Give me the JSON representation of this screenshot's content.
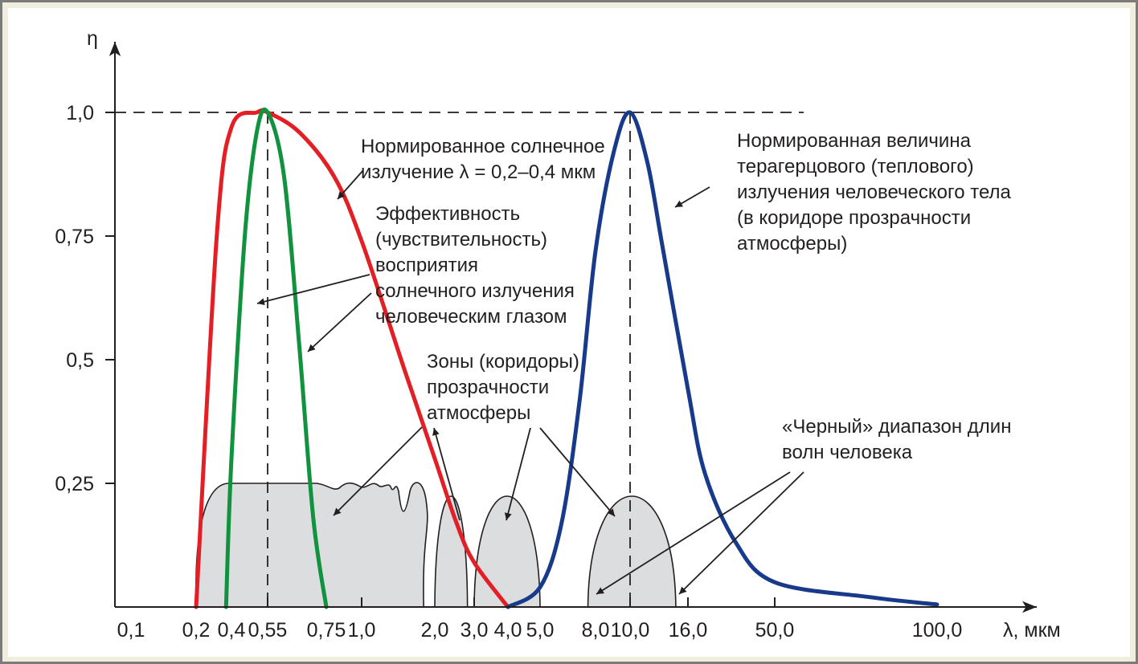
{
  "chart_data": {
    "type": "line",
    "ylabel": "η",
    "xlabel": "λ, мкм",
    "x_scale": "log",
    "ylim": [
      0,
      1.0
    ],
    "y_ticks": [
      "0,25",
      "0,5",
      "0,75",
      "1,0"
    ],
    "y_tick_values": [
      0.25,
      0.5,
      0.75,
      1.0
    ],
    "x_ticks": [
      "0,1",
      "0,2",
      "0,4",
      "0,55",
      "0,75",
      "1,0",
      "2,0",
      "3,0",
      "4,0",
      "5,0",
      "8,0",
      "10,0",
      "16,0",
      "50,0",
      "100,0"
    ],
    "x_tick_values": [
      0.1,
      0.2,
      0.4,
      0.55,
      0.75,
      1.0,
      2.0,
      3.0,
      4.0,
      5.0,
      8.0,
      10.0,
      16.0,
      50.0,
      100.0
    ],
    "reference_line_y": 1.0,
    "series": [
      {
        "color": "#e31e24",
        "x": [
          0.2,
          0.3,
          0.4,
          0.5,
          0.55,
          0.65,
          0.8,
          1.0,
          1.5,
          2.0,
          2.5,
          3.0,
          4.0
        ],
        "y": [
          0.0,
          0.75,
          0.97,
          1.0,
          1.0,
          0.96,
          0.87,
          0.74,
          0.48,
          0.3,
          0.17,
          0.09,
          0.0
        ]
      },
      {
        "color": "#10923e",
        "x": [
          0.36,
          0.4,
          0.45,
          0.5,
          0.55,
          0.6,
          0.65,
          0.7,
          0.75
        ],
        "y": [
          0.0,
          0.3,
          0.75,
          0.96,
          1.0,
          0.87,
          0.53,
          0.18,
          0.0
        ]
      },
      {
        "color": "#183a8a",
        "x": [
          4.0,
          5.0,
          6.0,
          7.0,
          8.0,
          9.0,
          10.0,
          11.5,
          13.0,
          16.0,
          20.0,
          30.0,
          50.0,
          75.0,
          100.0
        ],
        "y": [
          0.0,
          0.04,
          0.17,
          0.42,
          0.72,
          0.92,
          1.0,
          0.9,
          0.73,
          0.44,
          0.27,
          0.13,
          0.05,
          0.02,
          0.005
        ]
      }
    ],
    "transparency_zones": [
      {
        "x_range": [
          0.2,
          1.8
        ],
        "peak": 0.25
      },
      {
        "x_range": [
          2.0,
          2.8
        ],
        "peak": 0.25
      },
      {
        "x_range": [
          3.0,
          5.0
        ],
        "peak": 0.25
      },
      {
        "x_range": [
          7.5,
          14.5
        ],
        "peak": 0.25
      }
    ],
    "annotations": [
      {
        "text": [
          "Нормированное солнечное",
          "излучение λ = 0,2–0,4 мкм"
        ]
      },
      {
        "text": [
          "Нормированная величина",
          "терагерцового (теплового)",
          "излучения человеческого тела",
          "(в коридоре прозрачности",
          "атмосферы)"
        ]
      },
      {
        "text": [
          "Эффективность",
          "(чувствительность)",
          "восприятия",
          "солнечного излучения",
          "человеческим глазом"
        ]
      },
      {
        "text": [
          "Зоны (коридоры)",
          "прозрачности",
          "атмосферы"
        ]
      },
      {
        "text": [
          "«Черный» диапазон длин",
          "волн человека"
        ]
      }
    ]
  }
}
